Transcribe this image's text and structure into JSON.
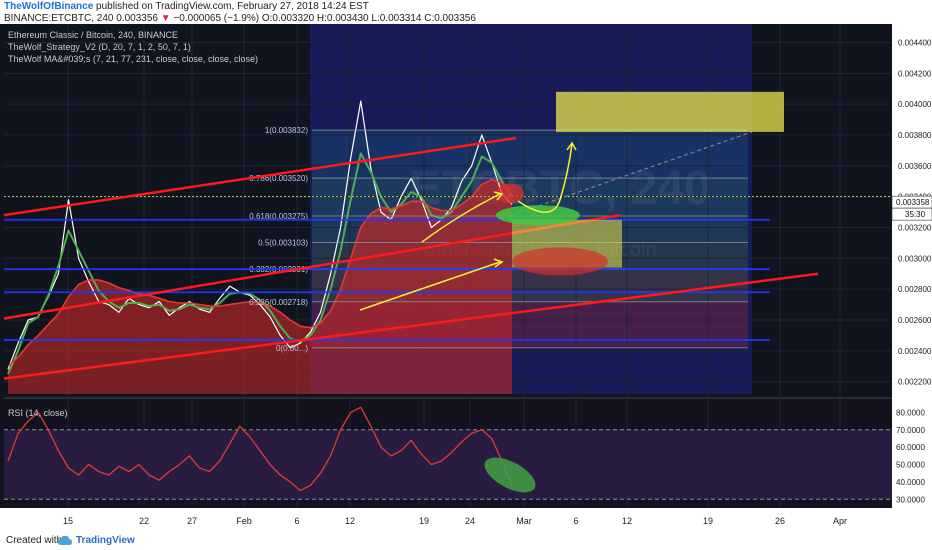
{
  "header": {
    "author": "TheWolfOfBinance",
    "published_text": "published on TradingView.com, February 27, 2018 14:24 EST",
    "symbol": "BINANCE:ETCBTC, 240",
    "last": "0.003356",
    "arrow": "▼",
    "change": "−0.000065 (−1.9%)",
    "ohlc": "O:0.003320 H:0.003430 L:0.003314 C:0.003356"
  },
  "legend": {
    "line1": "Ethereum Classic / Bitcoin, 240, BINANCE",
    "line2": "TheWolf_Strategy_V2 (D, 20, 7, 1, 2, 50, 7, 1)",
    "line3": "TheWolf MA&#039;s (7, 21, 77, 231, close, close, close, close)"
  },
  "watermark": "ETCBTC, 240",
  "watermark_sub": "Ethereum Classic / Bitcoin",
  "price_tag": {
    "value": "0.003358",
    "countdown": "35:30"
  },
  "rsi": {
    "label": "RSI (14, close)"
  },
  "footer": {
    "created_with": "Created with",
    "brand": "TradingView"
  },
  "colors": {
    "background": "#10141f",
    "up_line": "#ffffff",
    "ma_fast": "#4caf50",
    "ma_slow": "#e53935",
    "trend": "#ff1a1a",
    "support": "#1e3aff",
    "annotation": "#f7f032",
    "rsi_line": "#e53935"
  },
  "chart_data": [
    {
      "type": "line",
      "title": "Ethereum Classic / Bitcoin, 240, BINANCE",
      "x_tick_labels": [
        "15",
        "22",
        "27",
        "Feb",
        "6",
        "12",
        "19",
        "24",
        "Mar",
        "6",
        "12",
        "19",
        "26",
        "Apr"
      ],
      "y_ticks": [
        0.0022,
        0.0024,
        0.0026,
        0.0028,
        0.003,
        0.0032,
        0.0034,
        0.0036,
        0.0038,
        0.004,
        0.0042,
        0.0044
      ],
      "y_tick_labels": [
        "0.002200",
        "0.002400",
        "0.002600",
        "0.002800",
        "0.003000",
        "0.003200",
        "0.003400",
        "0.003600",
        "0.003800",
        "0.004000",
        "0.004200",
        "0.004400"
      ],
      "ylim": [
        0.00212,
        0.00452
      ],
      "series": [
        {
          "values": [
            0.00228,
            0.00245,
            0.0026,
            0.00262,
            0.00275,
            0.0029,
            0.00338,
            0.003,
            0.00285,
            0.00272,
            0.0027,
            0.00265,
            0.00274,
            0.0027,
            0.00268,
            0.00272,
            0.00263,
            0.00268,
            0.00272,
            0.00267,
            0.00265,
            0.00274,
            0.00282,
            0.00278,
            0.00276,
            0.0027,
            0.00262,
            0.0025,
            0.00242,
            0.00245,
            0.00252,
            0.00265,
            0.0029,
            0.0032,
            0.00365,
            0.00402,
            0.00358,
            0.0033,
            0.00325,
            0.0034,
            0.00352,
            0.00338,
            0.0032,
            0.00325,
            0.00333,
            0.0035,
            0.0036,
            0.0038,
            0.00362,
            0.00342,
            0.00335
          ]
        },
        {
          "values": [
            0.00225,
            0.0024,
            0.00258,
            0.00262,
            0.00276,
            0.00295,
            0.00318,
            0.00305,
            0.00292,
            0.00279,
            0.00272,
            0.00268,
            0.00271,
            0.00271,
            0.00269,
            0.0027,
            0.00266,
            0.00267,
            0.0027,
            0.00268,
            0.00267,
            0.00271,
            0.00277,
            0.00278,
            0.00277,
            0.00273,
            0.00266,
            0.00256,
            0.00248,
            0.00246,
            0.0025,
            0.0026,
            0.0028,
            0.00305,
            0.00338,
            0.00368,
            0.00356,
            0.0034,
            0.0033,
            0.00335,
            0.00343,
            0.0034,
            0.00328,
            0.00326,
            0.0033,
            0.0034,
            0.0035,
            0.00366,
            0.00362,
            0.0035,
            0.0034
          ]
        },
        {
          "values": [
            0.0023,
            0.00236,
            0.00244,
            0.0025,
            0.00257,
            0.00264,
            0.00275,
            0.00283,
            0.00286,
            0.00286,
            0.00284,
            0.00281,
            0.00279,
            0.00277,
            0.00276,
            0.00274,
            0.00272,
            0.00271,
            0.00271,
            0.0027,
            0.00269,
            0.00269,
            0.0027,
            0.00271,
            0.00272,
            0.00271,
            0.00269,
            0.00265,
            0.0026,
            0.00256,
            0.00255,
            0.00258,
            0.00266,
            0.0028,
            0.003,
            0.0032,
            0.00329,
            0.00333,
            0.00332,
            0.00334,
            0.00337,
            0.00337,
            0.00333,
            0.00331,
            0.00331,
            0.00335,
            0.0034,
            0.00348,
            0.00351,
            0.00349,
            0.00345
          ]
        }
      ],
      "fib_levels": [
        {
          "ratio": "0",
          "label": "0(0.00...)",
          "value": 0.00242
        },
        {
          "ratio": "0.236",
          "label": "0.236(0.002718)",
          "value": 0.002718
        },
        {
          "ratio": "0.382",
          "label": "0.382(0.002931)",
          "value": 0.002931
        },
        {
          "ratio": "0.5",
          "label": "0.5(0.003103)",
          "value": 0.003103
        },
        {
          "ratio": "0.618",
          "label": "0.618(0.003275)",
          "value": 0.003275
        },
        {
          "ratio": "0.786",
          "label": "0.786(0.003520)",
          "value": 0.00352
        },
        {
          "ratio": "1",
          "label": "1(0.003832)",
          "value": 0.003832
        }
      ]
    },
    {
      "type": "line",
      "title": "RSI (14, close)",
      "y_ticks": [
        30,
        40,
        50,
        60,
        70,
        80
      ],
      "y_tick_labels": [
        "30.0000",
        "40.0000",
        "50.0000",
        "60.0000",
        "70.0000",
        "80.0000"
      ],
      "ylim": [
        25,
        86
      ],
      "bands": [
        30,
        70
      ],
      "series": [
        {
          "values": [
            52,
            68,
            75,
            80,
            70,
            58,
            48,
            44,
            50,
            46,
            44,
            49,
            46,
            50,
            44,
            41,
            46,
            50,
            55,
            48,
            46,
            52,
            62,
            72,
            66,
            58,
            50,
            44,
            40,
            35,
            38,
            45,
            55,
            70,
            80,
            83,
            72,
            60,
            55,
            58,
            64,
            56,
            50,
            52,
            57,
            63,
            68,
            70,
            65,
            52,
            38
          ]
        }
      ]
    }
  ]
}
